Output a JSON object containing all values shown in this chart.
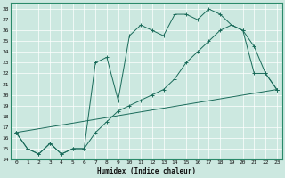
{
  "xlabel": "Humidex (Indice chaleur)",
  "bg_color": "#cce8e0",
  "grid_color": "#ffffff",
  "line_color": "#1a6b5a",
  "xlim": [
    -0.5,
    23.5
  ],
  "ylim": [
    14,
    28.6
  ],
  "yticks": [
    14,
    15,
    16,
    17,
    18,
    19,
    20,
    21,
    22,
    23,
    24,
    25,
    26,
    27,
    28
  ],
  "xticks": [
    0,
    1,
    2,
    3,
    4,
    5,
    6,
    7,
    8,
    9,
    10,
    11,
    12,
    13,
    14,
    15,
    16,
    17,
    18,
    19,
    20,
    21,
    22,
    23
  ],
  "line1_x": [
    0,
    1,
    2,
    3,
    4,
    5,
    6,
    7,
    8,
    9,
    10,
    11,
    12,
    13,
    14,
    15,
    16,
    17,
    18,
    19,
    20,
    21,
    22,
    23
  ],
  "line1_y": [
    16.5,
    15.0,
    14.5,
    15.5,
    14.5,
    15.0,
    15.0,
    23.0,
    23.5,
    19.5,
    25.5,
    26.5,
    26.0,
    25.5,
    27.5,
    27.5,
    27.0,
    28.0,
    27.5,
    26.5,
    26.0,
    24.5,
    22.0,
    20.5
  ],
  "line2_x": [
    0,
    1,
    2,
    3,
    4,
    5,
    6,
    7,
    8,
    9,
    10,
    11,
    12,
    13,
    14,
    15,
    16,
    17,
    18,
    19,
    20,
    21,
    22,
    23
  ],
  "line2_y": [
    16.5,
    15.0,
    14.5,
    15.5,
    14.5,
    15.0,
    15.0,
    16.5,
    17.5,
    18.5,
    19.0,
    19.5,
    20.0,
    20.5,
    21.5,
    23.0,
    24.0,
    25.0,
    26.0,
    26.5,
    26.0,
    22.0,
    22.0,
    20.5
  ],
  "line3_x": [
    0,
    23
  ],
  "line3_y": [
    16.5,
    20.5
  ]
}
